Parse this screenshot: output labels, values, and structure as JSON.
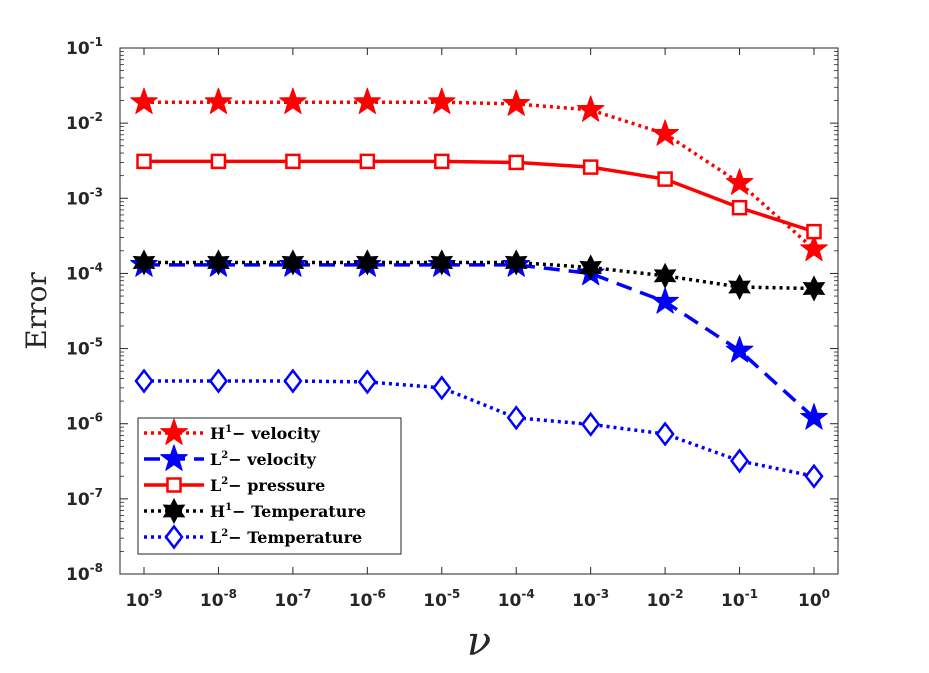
{
  "chart_data": {
    "type": "line",
    "title": "",
    "xlabel": "ν",
    "ylabel": "Error",
    "xscale": "log",
    "yscale": "log",
    "xlim_exp": [
      -9,
      0
    ],
    "ylim_exp": [
      -8,
      -1
    ],
    "x_ticks": [
      {
        "base": "10",
        "exp": "-9"
      },
      {
        "base": "10",
        "exp": "-8"
      },
      {
        "base": "10",
        "exp": "-7"
      },
      {
        "base": "10",
        "exp": "-6"
      },
      {
        "base": "10",
        "exp": "-5"
      },
      {
        "base": "10",
        "exp": "-4"
      },
      {
        "base": "10",
        "exp": "-3"
      },
      {
        "base": "10",
        "exp": "-2"
      },
      {
        "base": "10",
        "exp": "-1"
      },
      {
        "base": "10",
        "exp": "0"
      }
    ],
    "y_ticks": [
      {
        "base": "10",
        "exp": "-8"
      },
      {
        "base": "10",
        "exp": "-7"
      },
      {
        "base": "10",
        "exp": "-6"
      },
      {
        "base": "10",
        "exp": "-5"
      },
      {
        "base": "10",
        "exp": "-4"
      },
      {
        "base": "10",
        "exp": "-3"
      },
      {
        "base": "10",
        "exp": "-2"
      },
      {
        "base": "10",
        "exp": "-1"
      }
    ],
    "x": [
      1e-09,
      1e-08,
      1e-07,
      1e-06,
      1e-05,
      0.0001,
      0.001,
      0.01,
      0.1,
      1
    ],
    "legend_position": "bottom-left",
    "series": [
      {
        "name": "H1- velocity",
        "label_main": "H",
        "label_sup": "1",
        "label_rest": "− velocity",
        "color": "#ff0000",
        "line_style": "dotted",
        "marker": "star",
        "values": [
          0.019,
          0.019,
          0.019,
          0.019,
          0.019,
          0.018,
          0.015,
          0.0072,
          0.0016,
          0.00021
        ]
      },
      {
        "name": "L2- velocity",
        "label_main": "L",
        "label_sup": "2",
        "label_rest": "− velocity",
        "color": "#0000ff",
        "line_style": "dashed",
        "marker": "star",
        "values": [
          0.00013,
          0.00013,
          0.00013,
          0.00013,
          0.00013,
          0.00013,
          0.0001,
          4.2e-05,
          9.4e-06,
          1.2e-06
        ]
      },
      {
        "name": "L2- pressure",
        "label_main": "L",
        "label_sup": "2",
        "label_rest": "− pressure",
        "color": "#ff0000",
        "line_style": "solid",
        "marker": "square",
        "values": [
          0.0031,
          0.0031,
          0.0031,
          0.0031,
          0.0031,
          0.003,
          0.0026,
          0.0018,
          0.00075,
          0.00036
        ]
      },
      {
        "name": "H1- Temperature",
        "label_main": "H",
        "label_sup": "1",
        "label_rest": "− Temperature",
        "color": "#000000",
        "line_style": "dotted",
        "marker": "hexagram",
        "values": [
          0.00014,
          0.00014,
          0.00014,
          0.00014,
          0.00014,
          0.00014,
          0.00012,
          9.3e-05,
          6.6e-05,
          6.3e-05
        ]
      },
      {
        "name": "L2- Temperature",
        "label_main": "L",
        "label_sup": "2",
        "label_rest": "− Temperature",
        "color": "#0000ff",
        "line_style": "dotted",
        "marker": "diamond",
        "values": [
          3.7e-06,
          3.7e-06,
          3.7e-06,
          3.6e-06,
          3e-06,
          1.2e-06,
          9.8e-07,
          7.3e-07,
          3.2e-07,
          2e-07
        ]
      }
    ]
  }
}
